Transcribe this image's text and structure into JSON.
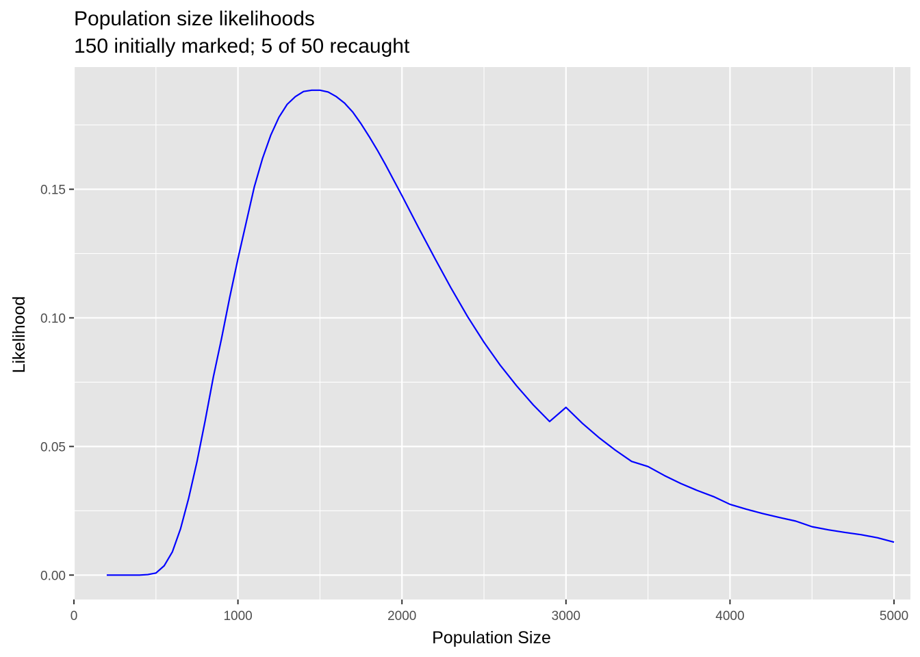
{
  "chart_data": {
    "type": "line",
    "title": "Population size likelihoods",
    "subtitle": "150 initially marked; 5 of 50 recaught",
    "xlabel": "Population Size",
    "ylabel": "Likelihood",
    "xlim": [
      0,
      5100
    ],
    "ylim": [
      -0.0095,
      0.1975
    ],
    "x_ticks": [
      0,
      1000,
      2000,
      3000,
      4000,
      5000
    ],
    "x_tick_labels": [
      "0",
      "1000",
      "2000",
      "3000",
      "4000",
      "5000"
    ],
    "y_ticks": [
      0.0,
      0.05,
      0.1,
      0.15
    ],
    "y_tick_labels": [
      "0.00",
      "0.05",
      "0.10",
      "0.15"
    ],
    "x_minor_gridlines": [
      500,
      1500,
      2500,
      3500,
      4500
    ],
    "y_minor_gridlines": [
      0.025,
      0.075,
      0.125,
      0.175
    ],
    "grid": true,
    "background_color": "#e5e5e5",
    "gridline_color": "#ffffff",
    "series": [
      {
        "color": "#0000ff",
        "x": [
          200,
          300,
          400,
          450,
          500,
          550,
          600,
          650,
          700,
          750,
          800,
          850,
          900,
          950,
          1000,
          1050,
          1100,
          1150,
          1200,
          1250,
          1300,
          1350,
          1400,
          1450,
          1500,
          1550,
          1600,
          1650,
          1700,
          1750,
          1800,
          1850,
          1900,
          1950,
          2000,
          2100,
          2200,
          2300,
          2400,
          2500,
          2600,
          2700,
          2800,
          2900,
          3000,
          3100,
          3200,
          3300,
          3400,
          3500,
          3600,
          3700,
          3800,
          3900,
          4000,
          4100,
          4200,
          4300,
          4400,
          4500,
          4600,
          4700,
          4800,
          4900,
          5000
        ],
        "y": [
          0.0,
          0.0,
          0.0,
          0.0002,
          0.0008,
          0.0036,
          0.009,
          0.018,
          0.03,
          0.044,
          0.06,
          0.077,
          0.092,
          0.108,
          0.123,
          0.137,
          0.151,
          0.162,
          0.171,
          0.178,
          0.183,
          0.186,
          0.188,
          0.1885,
          0.1885,
          0.1878,
          0.186,
          0.1835,
          0.18,
          0.1755,
          0.1705,
          0.1652,
          0.1595,
          0.1535,
          0.1475,
          0.1352,
          0.1232,
          0.1115,
          0.1005,
          0.0905,
          0.0815,
          0.0735,
          0.0662,
          0.0597,
          0.0652,
          0.059,
          0.0535,
          0.0486,
          0.0442,
          0.0422,
          0.0387,
          0.0356,
          0.0329,
          0.0305,
          0.0275,
          0.0256,
          0.0239,
          0.0224,
          0.021,
          0.0188,
          0.0176,
          0.0166,
          0.0157,
          0.0145,
          0.0128
        ]
      }
    ]
  }
}
